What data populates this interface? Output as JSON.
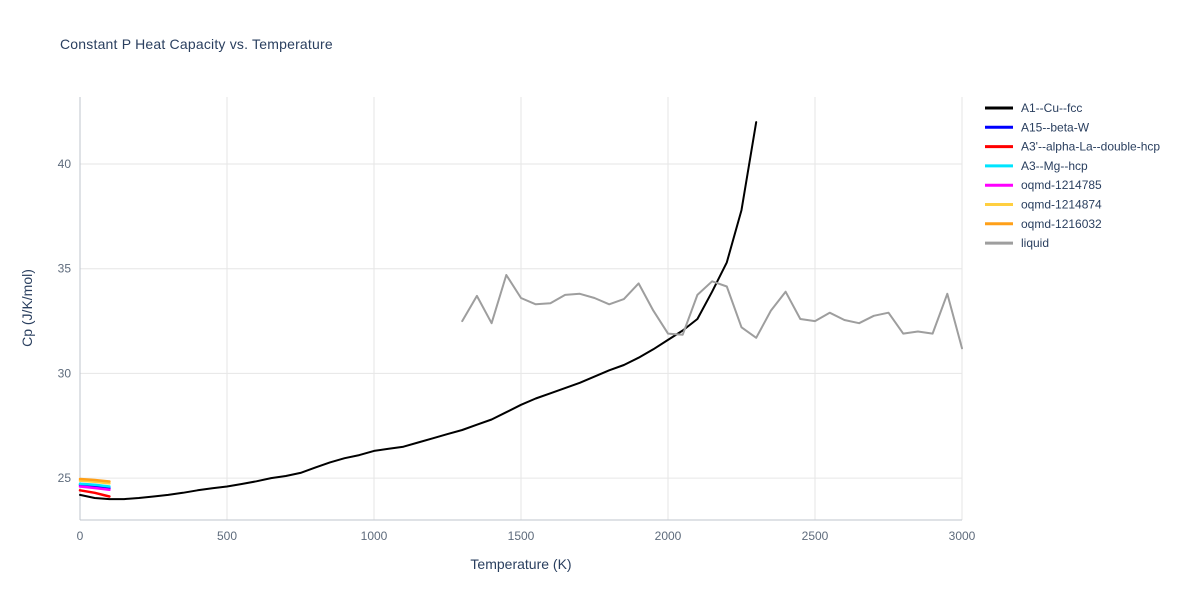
{
  "chart_data": {
    "type": "line",
    "title": "Constant P Heat Capacity vs. Temperature",
    "xlabel": "Temperature (K)",
    "ylabel": "Cp (J/K/mol)",
    "xlim": [
      0,
      3000
    ],
    "ylim": [
      23.0,
      43.2
    ],
    "x_ticks": [
      0,
      500,
      1000,
      1500,
      2000,
      2500,
      3000
    ],
    "y_ticks": [
      25,
      30,
      35,
      40
    ],
    "grid": true,
    "legend_position": "top-right-outside",
    "colors": {
      "background": "#ffffff",
      "grid": "#e6e6e6",
      "axis": "#bfc5ce",
      "tick_text": "#5e6b7c",
      "label_text": "#2a3f5f"
    },
    "series": [
      {
        "name": "A1--Cu--fcc",
        "color": "#000000",
        "width": 2,
        "x": [
          0,
          50,
          100,
          150,
          200,
          250,
          300,
          350,
          400,
          450,
          500,
          550,
          600,
          650,
          700,
          750,
          800,
          850,
          900,
          950,
          1000,
          1050,
          1100,
          1150,
          1200,
          1250,
          1300,
          1350,
          1400,
          1450,
          1500,
          1550,
          1600,
          1650,
          1700,
          1750,
          1800,
          1850,
          1900,
          1950,
          2000,
          2050,
          2100,
          2150,
          2200,
          2250,
          2300
        ],
        "y": [
          24.2,
          24.05,
          24.0,
          24.0,
          24.05,
          24.12,
          24.2,
          24.3,
          24.42,
          24.52,
          24.6,
          24.72,
          24.85,
          25.0,
          25.1,
          25.25,
          25.5,
          25.75,
          25.95,
          26.1,
          26.3,
          26.4,
          26.5,
          26.7,
          26.9,
          27.1,
          27.3,
          27.55,
          27.8,
          28.15,
          28.5,
          28.8,
          29.05,
          29.3,
          29.55,
          29.85,
          30.15,
          30.4,
          30.75,
          31.15,
          31.6,
          32.05,
          32.6,
          33.9,
          35.3,
          37.8,
          42.0
        ]
      },
      {
        "name": "A15--beta-W",
        "color": "#0000ff",
        "width": 2.5,
        "x": [
          0,
          50,
          100
        ],
        "y": [
          24.68,
          24.62,
          24.52
        ]
      },
      {
        "name": "A3'--alpha-La--double-hcp",
        "color": "#ff0000",
        "width": 2.5,
        "x": [
          0,
          50,
          100
        ],
        "y": [
          24.42,
          24.3,
          24.12
        ]
      },
      {
        "name": "A3--Mg--hcp",
        "color": "#00e5ff",
        "width": 2.5,
        "x": [
          0,
          50,
          100
        ],
        "y": [
          24.73,
          24.68,
          24.6
        ]
      },
      {
        "name": "oqmd-1214785",
        "color": "#ff00ff",
        "width": 2.5,
        "x": [
          0,
          50,
          100
        ],
        "y": [
          24.6,
          24.53,
          24.44
        ]
      },
      {
        "name": "oqmd-1214874",
        "color": "#ffcf40",
        "width": 2.5,
        "x": [
          0,
          50,
          100
        ],
        "y": [
          24.88,
          24.83,
          24.75
        ]
      },
      {
        "name": "oqmd-1216032",
        "color": "#ffa018",
        "width": 2.5,
        "x": [
          0,
          50,
          100
        ],
        "y": [
          24.96,
          24.91,
          24.84
        ]
      },
      {
        "name": "liquid",
        "color": "#9e9e9e",
        "width": 2,
        "x": [
          1300,
          1350,
          1400,
          1450,
          1500,
          1550,
          1600,
          1650,
          1700,
          1750,
          1800,
          1850,
          1900,
          1950,
          2000,
          2050,
          2100,
          2150,
          2200,
          2250,
          2300,
          2350,
          2400,
          2450,
          2500,
          2550,
          2600,
          2650,
          2700,
          2750,
          2800,
          2850,
          2900,
          2950,
          3000
        ],
        "y": [
          32.5,
          33.7,
          32.4,
          34.7,
          33.6,
          33.3,
          33.35,
          33.75,
          33.8,
          33.6,
          33.3,
          33.55,
          34.3,
          33.0,
          31.9,
          31.85,
          33.75,
          34.4,
          34.15,
          32.2,
          31.7,
          33.0,
          33.9,
          32.6,
          32.5,
          32.9,
          32.55,
          32.4,
          32.75,
          32.9,
          31.9,
          32.0,
          31.9,
          33.8,
          31.2
        ]
      }
    ]
  }
}
